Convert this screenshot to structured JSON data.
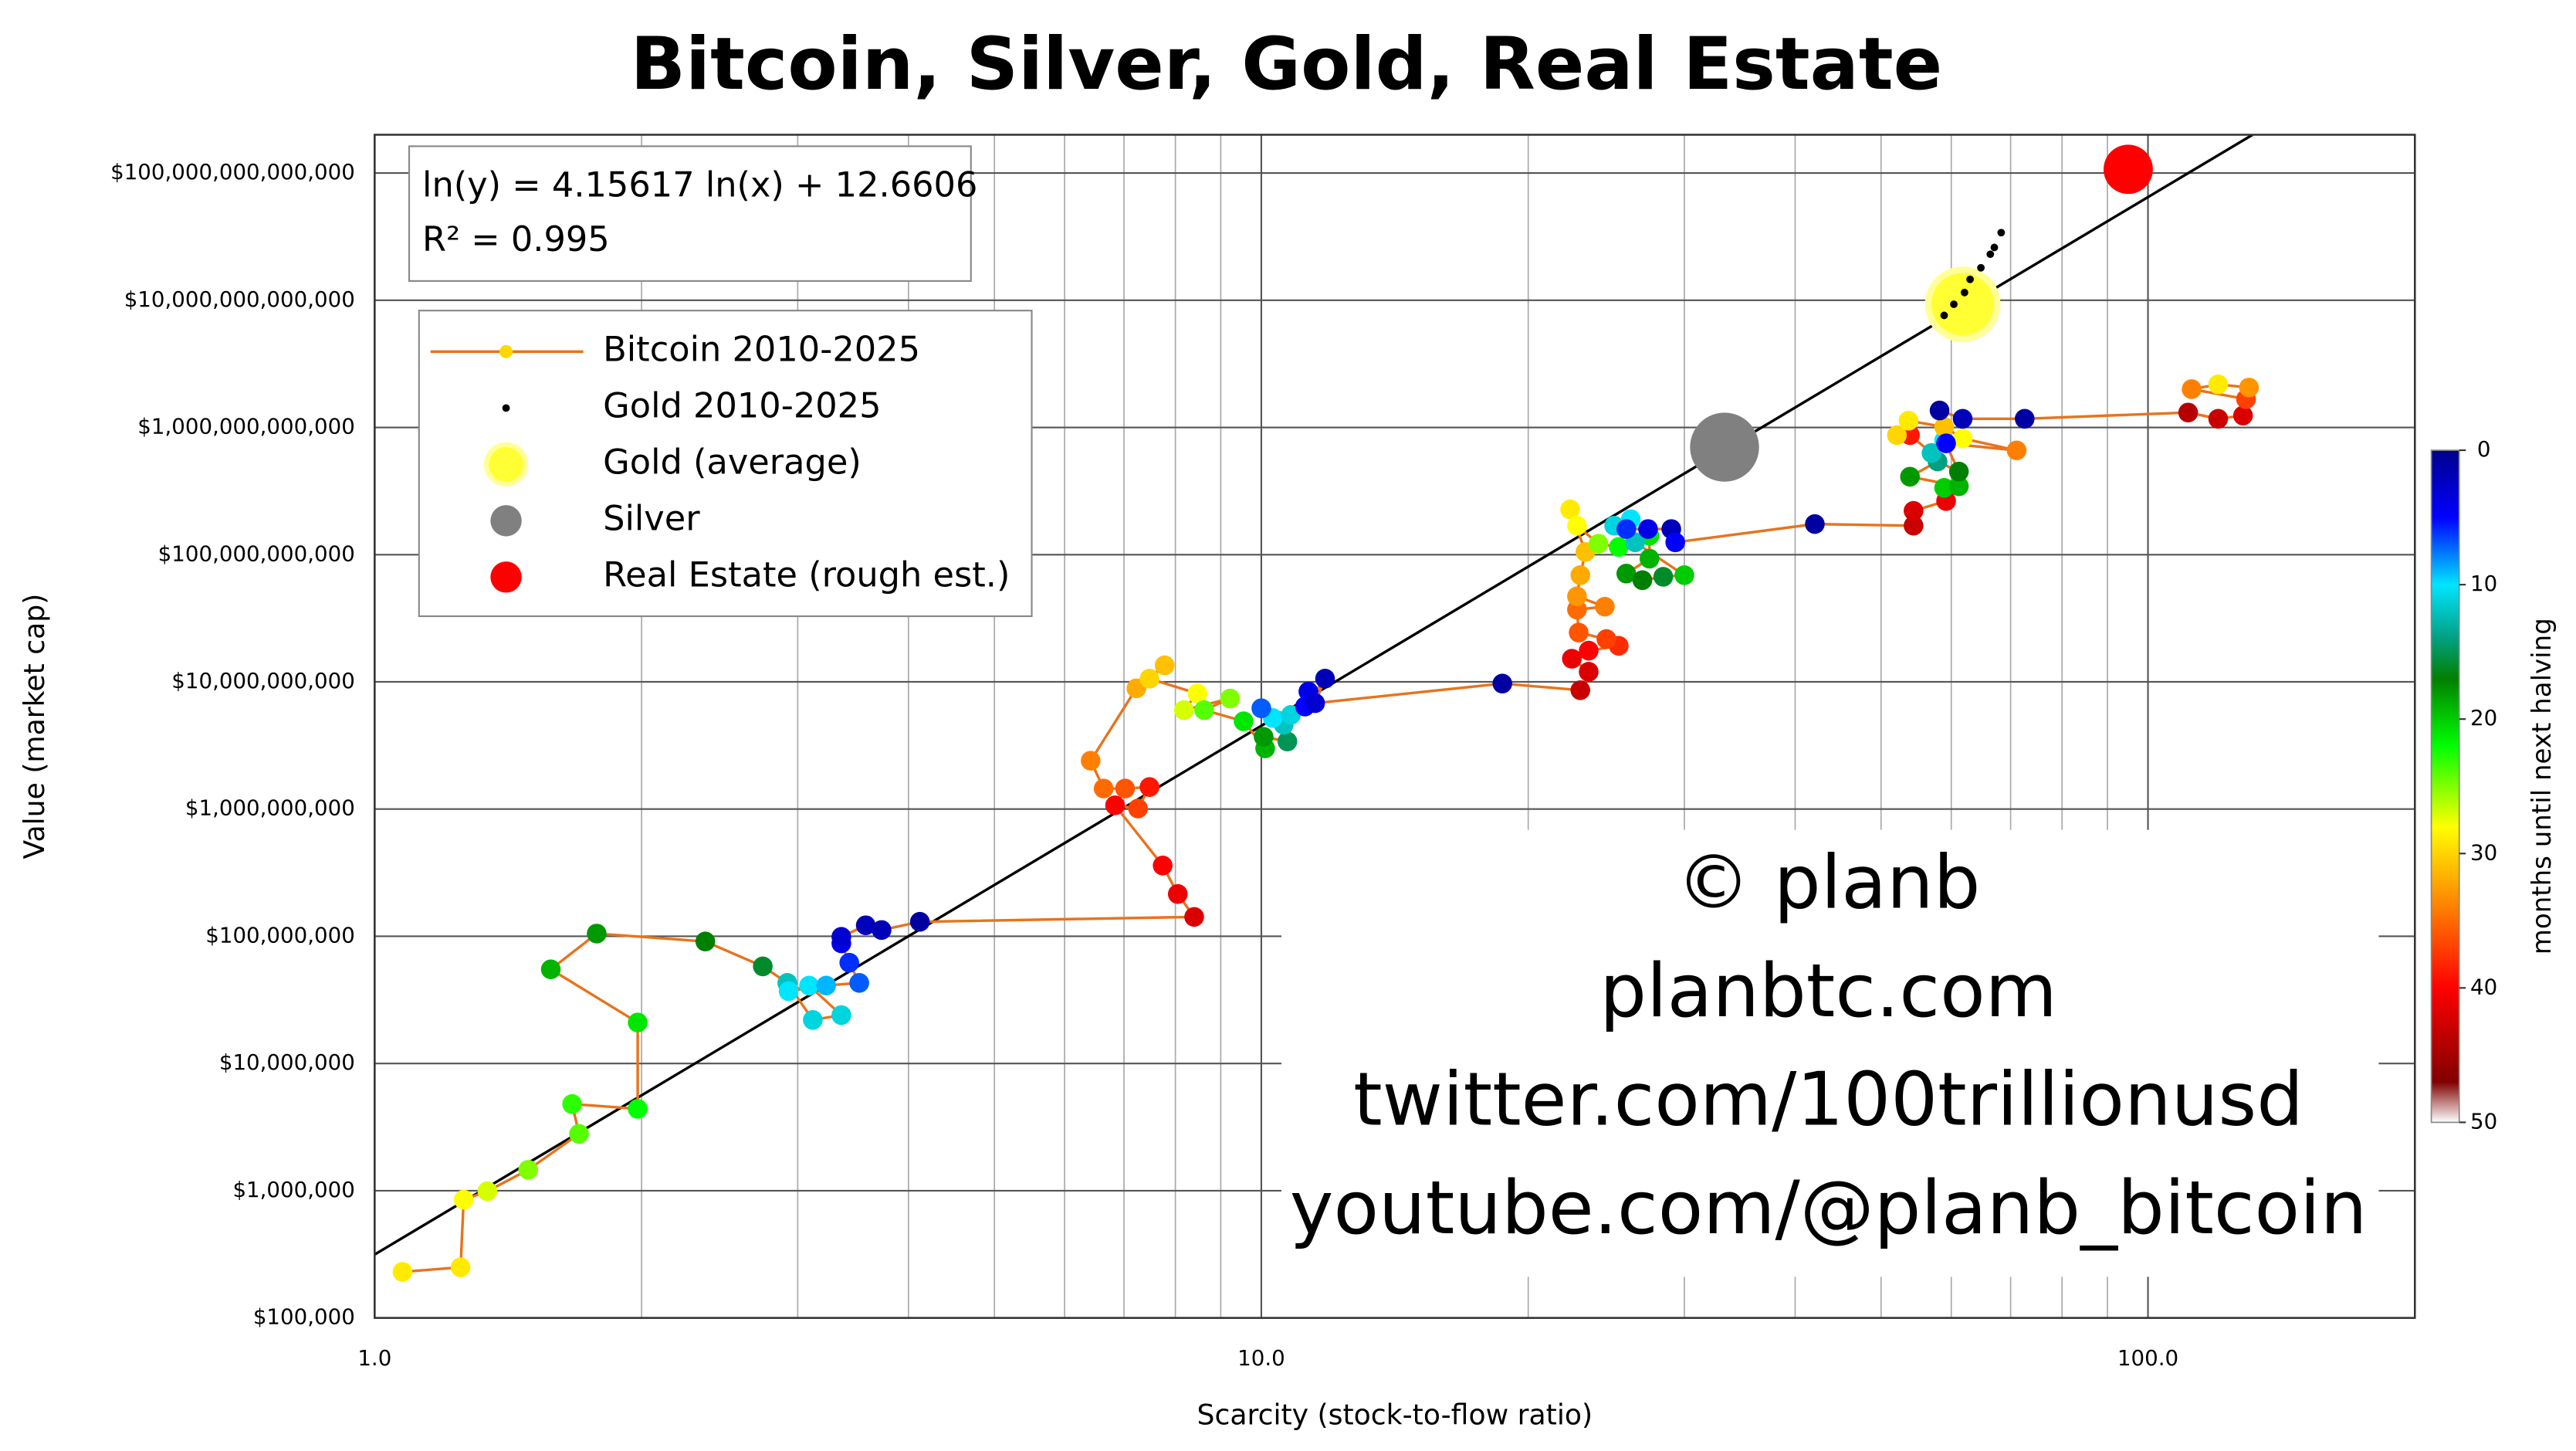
{
  "chart_data": {
    "type": "scatter",
    "title": "Bitcoin, Silver, Gold, Real Estate",
    "xlabel": "Scarcity (stock-to-flow ratio)",
    "ylabel": "Value (market cap)",
    "xscale": "log",
    "yscale": "log",
    "grid": true,
    "legend": "upper left",
    "xlim": [
      1,
      200
    ],
    "ylim": [
      100000.0,
      200000000000000.0
    ],
    "xticks": [
      {
        "value": 1,
        "label": "1.0"
      },
      {
        "value": 10,
        "label": "10.0"
      },
      {
        "value": 100,
        "label": "100.0"
      }
    ],
    "xminorticks": [
      2,
      3,
      4,
      5,
      6,
      7,
      8,
      9,
      20,
      30,
      40,
      50,
      60,
      70,
      80,
      90
    ],
    "yticks": [
      {
        "value": 100000.0,
        "label": "$100,000"
      },
      {
        "value": 1000000.0,
        "label": "$1,000,000"
      },
      {
        "value": 10000000.0,
        "label": "$10,000,000"
      },
      {
        "value": 100000000.0,
        "label": "$100,000,000"
      },
      {
        "value": 1000000000.0,
        "label": "$1,000,000,000"
      },
      {
        "value": 10000000000.0,
        "label": "$10,000,000,000"
      },
      {
        "value": 100000000000.0,
        "label": "$100,000,000,000"
      },
      {
        "value": 1000000000000.0,
        "label": "$1,000,000,000,000"
      },
      {
        "value": 10000000000000.0,
        "label": "$10,000,000,000,000"
      },
      {
        "value": 100000000000000.0,
        "label": "$100,000,000,000,000"
      }
    ],
    "fit_line": {
      "label": "ln(y) = 4.15617 ln(x) + 12.6606",
      "r2_label": "R² = 0.995",
      "slope": 4.15617,
      "intercept": 12.6606,
      "color": "#000000"
    },
    "watermark": [
      "© planb",
      "planbtc.com",
      "twitter.com/100trillionusd",
      "youtube.com/@planb_bitcoin"
    ],
    "colorbar": {
      "label": "months until next halving",
      "lim": [
        0,
        50
      ],
      "ticks": [
        0,
        10,
        20,
        30,
        40,
        50
      ],
      "stops": [
        {
          "value": 0,
          "color": "#00008b"
        },
        {
          "value": 5,
          "color": "#0000ff"
        },
        {
          "value": 10,
          "color": "#00e5ff"
        },
        {
          "value": 14,
          "color": "#00a080"
        },
        {
          "value": 17,
          "color": "#008000"
        },
        {
          "value": 22,
          "color": "#00ff00"
        },
        {
          "value": 28,
          "color": "#ffff00"
        },
        {
          "value": 34,
          "color": "#ff8000"
        },
        {
          "value": 40,
          "color": "#ff0000"
        },
        {
          "value": 47,
          "color": "#800000"
        },
        {
          "value": 50,
          "color": "#ffffff"
        }
      ]
    },
    "series": [
      {
        "name": "Bitcoin 2010-2025",
        "color": "#e8731c",
        "marker_color": "#ffd700",
        "x": [
          1.075,
          1.25,
          1.26,
          1.34,
          1.49,
          1.7,
          1.67,
          1.98,
          1.98,
          1.58,
          1.78,
          2.36,
          2.74,
          2.92,
          3.12,
          3.36,
          3.09,
          2.93,
          3.23,
          3.52,
          3.43,
          3.36,
          3.36,
          3.58,
          3.73,
          4.12,
          8.4,
          8.05,
          7.74,
          6.84,
          7.26,
          7.48,
          7.02,
          6.64,
          6.42,
          7.23,
          7.78,
          7.48,
          8.47,
          8.18,
          9.22,
          8.62,
          9.55,
          10.1,
          10.06,
          10.7,
          10.6,
          10.3,
          10.0,
          10.8,
          11.3,
          11.2,
          11.8,
          11.5,
          18.7,
          22.9,
          23.4,
          22.4,
          23.4,
          25.3,
          24.5,
          22.8,
          22.7,
          24.4,
          22.7,
          22.9,
          23.2,
          22.3,
          22.7,
          24.0,
          25.3,
          27.4,
          27.4,
          25.8,
          26.9,
          28.4,
          30.0,
          26.4,
          25.0,
          26.1,
          25.8,
          27.3,
          29.0,
          29.3,
          42.1,
          54.4,
          54.4,
          59.2,
          58.9,
          61.2,
          53.9,
          57.9,
          61.2,
          58.9,
          57.0,
          53.9,
          52.1,
          53.7,
          58.9,
          61.8,
          71.1,
          59.2,
          58.2,
          61.8,
          72.6,
          111,
          120,
          128,
          129,
          112,
          120,
          130
        ],
        "values": [
          230000.0,
          250000.0,
          850000.0,
          990000.0,
          1460000.0,
          2800000.0,
          4800000.0,
          4400000.0,
          21000000.0,
          55000000.0,
          105000000.0,
          91000000.0,
          58000000.0,
          43000000.0,
          22000000.0,
          24000000.0,
          41000000.0,
          37000000.0,
          41000000.0,
          43000000.0,
          62000000.0,
          88000000.0,
          99000000.0,
          122000000.0,
          112000000.0,
          130000000.0,
          142000000.0,
          215000000.0,
          360000000.0,
          1070000000.0,
          1010000000.0,
          1490000000.0,
          1450000000.0,
          1450000000.0,
          2400000000.0,
          8900000000.0,
          13500000000.0,
          10600000000.0,
          8100000000.0,
          6000000000.0,
          7400000000.0,
          6000000000.0,
          4900000000.0,
          3000000000.0,
          3700000000.0,
          3400000000.0,
          4600000000.0,
          5200000000.0,
          6200000000.0,
          5500000000.0,
          8400000000.0,
          6400000000.0,
          10600000000.0,
          6800000000.0,
          9700000000.0,
          8600000000.0,
          12000000000.0,
          15200000000.0,
          17600000000.0,
          19200000000.0,
          21700000000.0,
          24400000000.0,
          37000000000.0,
          39000000000.0,
          47000000000.0,
          69000000000.0,
          105000000000.0,
          227000000000.0,
          169000000000.0,
          122000000000.0,
          115000000000.0,
          141000000000.0,
          93000000000.0,
          71000000000.0,
          63000000000.0,
          67000000000.0,
          69000000000.0,
          125000000000.0,
          169000000000.0,
          190000000000.0,
          159000000000.0,
          159000000000.0,
          159000000000.0,
          125000000000.0,
          174000000000.0,
          169000000000.0,
          221000000000.0,
          264000000000.0,
          335000000000.0,
          345000000000.0,
          410000000000.0,
          540000000000.0,
          450000000000.0,
          790000000000.0,
          630000000000.0,
          870000000000.0,
          870000000000.0,
          1130000000000.0,
          1010000000000.0,
          820000000000.0,
          660000000000.0,
          750000000000.0,
          1360000000000.0,
          1170000000000.0,
          1170000000000.0,
          1310000000000.0,
          1170000000000.0,
          1240000000000.0,
          1670000000000.0,
          2000000000000.0,
          2180000000000.0,
          2060000000000.0
        ],
        "months": [
          29,
          29,
          28,
          27,
          25,
          24,
          23,
          22,
          21,
          19,
          18,
          17,
          16,
          12,
          11,
          11,
          10,
          10,
          9,
          7,
          6,
          4,
          3,
          2,
          2,
          1,
          42,
          41,
          40,
          40,
          37,
          39,
          36,
          35,
          34,
          32,
          31,
          30,
          28,
          27,
          25,
          24,
          21,
          19,
          18,
          15,
          12,
          10,
          7,
          11,
          4,
          5,
          2,
          3,
          1,
          43,
          42,
          41,
          40,
          38,
          37,
          36,
          35,
          34,
          33,
          32,
          31,
          29,
          28,
          25,
          22,
          21,
          19,
          18,
          17,
          16,
          20,
          12,
          11,
          10,
          6,
          4,
          2,
          5,
          1,
          43,
          42,
          41,
          20,
          19,
          18,
          14,
          17,
          10,
          12,
          39,
          30,
          29,
          31,
          28,
          34,
          5,
          1,
          2,
          1,
          44,
          43,
          42,
          37,
          34,
          29,
          33
        ]
      },
      {
        "name": "Gold 2010-2025",
        "color": "#000000",
        "x": [
          58.9,
          60.4,
          62.1,
          63.0,
          64.8,
          66.4,
          67.1,
          68.3
        ],
        "values": [
          7600000000000.0,
          9300000000000.0,
          11500000000000.0,
          14600000000000.0,
          18000000000000.0,
          23000000000000.0,
          26000000000000.0,
          34000000000000.0
        ]
      },
      {
        "name": "Gold (average)",
        "color": "#ffff33",
        "x": [
          61.8
        ],
        "values": [
          9300000000000.0
        ]
      },
      {
        "name": "Silver",
        "color": "#808080",
        "x": [
          33.3
        ],
        "values": [
          700000000000.0
        ]
      },
      {
        "name": "Real Estate (rough est.)",
        "color": "#ff0000",
        "x": [
          95
        ],
        "values": [
          107000000000000.0
        ]
      }
    ]
  }
}
